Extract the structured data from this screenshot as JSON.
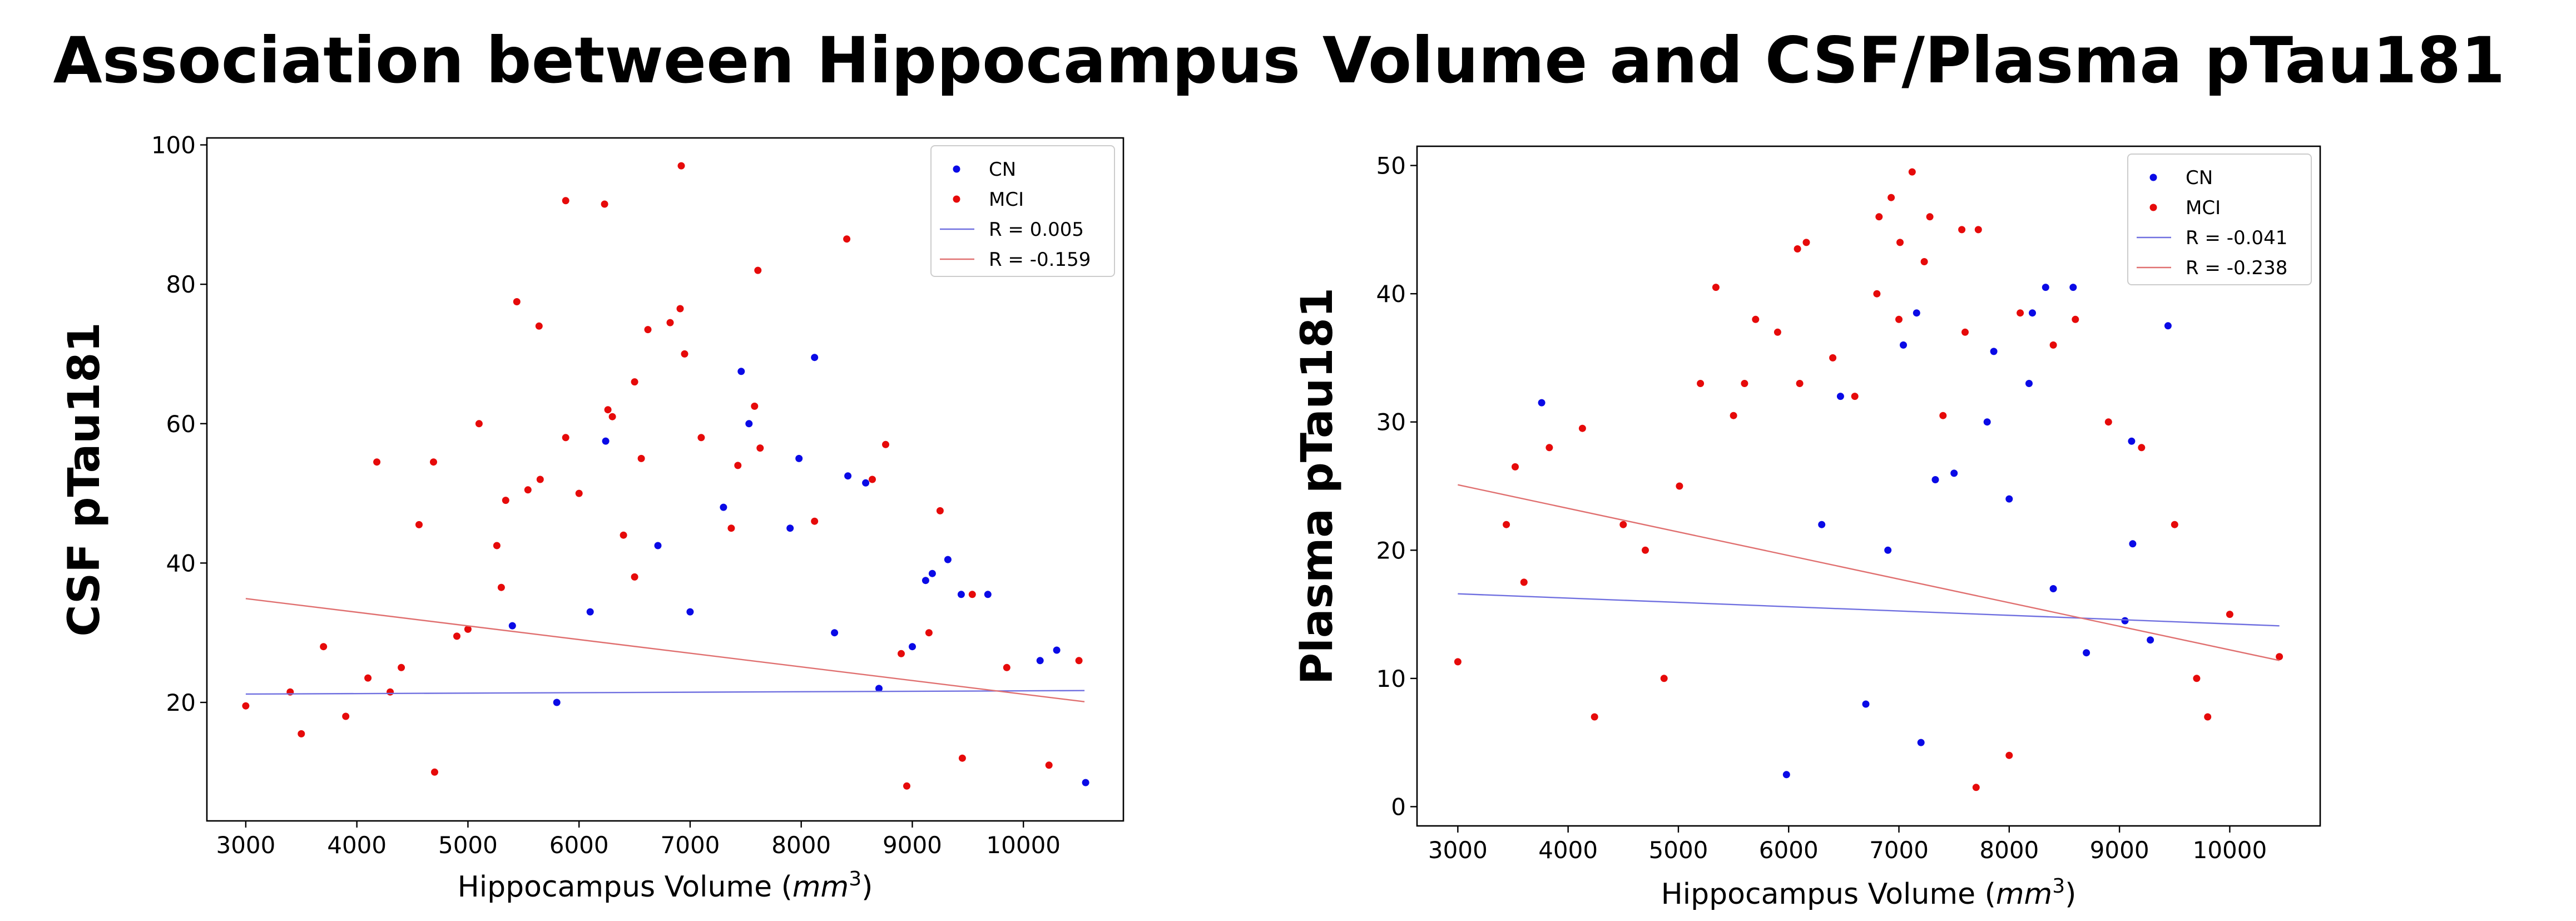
{
  "figure_title": "Association between Hippocampus Volume and CSF/Plasma pTau181",
  "colors": {
    "CN": "#0a0ae6",
    "MCI": "#e60a0a",
    "fit_CN": "#7070e0",
    "fit_MCI": "#e07070"
  },
  "chart_data": [
    {
      "type": "scatter",
      "xlabel": "Hippocampus Volume (mm3)",
      "ylabel": "CSF pTau181",
      "xlim": [
        2650,
        10900
      ],
      "ylim": [
        3,
        101
      ],
      "xticks": [
        3000,
        4000,
        5000,
        6000,
        7000,
        8000,
        9000,
        10000
      ],
      "yticks": [
        20,
        40,
        60,
        80,
        100
      ],
      "grid": false,
      "legend_position": "top-right",
      "legend": [
        {
          "label": "CN",
          "kind": "point",
          "series": "CN"
        },
        {
          "label": "MCI",
          "kind": "point",
          "series": "MCI"
        },
        {
          "label": "R = 0.005",
          "kind": "line",
          "series": "CN"
        },
        {
          "label": "R = -0.159",
          "kind": "line",
          "series": "MCI"
        }
      ],
      "fit_lines": [
        {
          "series": "CN",
          "r": 0.005,
          "x": [
            3000,
            10550
          ],
          "y": [
            21.2,
            21.7
          ]
        },
        {
          "series": "MCI",
          "r": -0.159,
          "x": [
            3000,
            10550
          ],
          "y": [
            34.9,
            20.1
          ]
        }
      ],
      "series": [
        {
          "name": "MCI",
          "x": [
            6920,
            5880,
            6230,
            8410,
            5440,
            7610,
            6820,
            6620,
            4180,
            6950,
            5640,
            6260,
            6500,
            5880,
            5100,
            4690,
            5340,
            4560,
            5650,
            6560,
            7580,
            8760,
            5260,
            8640,
            8120,
            9250,
            9540,
            7630,
            6300,
            7100,
            7430,
            7370,
            6000,
            6400,
            6500,
            5300,
            5000,
            4900,
            4300,
            4100,
            3700,
            3500,
            3000,
            3400,
            3900,
            4400,
            4700,
            9850,
            10230,
            10500,
            9450,
            9150,
            8900,
            8950,
            6910,
            5540
          ],
          "y": [
            97,
            92,
            91.5,
            86.5,
            77.5,
            82,
            74.5,
            73.5,
            54.5,
            70,
            74,
            62,
            66,
            58,
            60,
            54.5,
            49,
            45.5,
            52,
            55,
            62.5,
            57,
            42.5,
            52,
            46,
            47.5,
            35.5,
            56.5,
            61,
            58,
            54,
            45,
            50,
            44,
            38,
            36.5,
            30.5,
            29.5,
            21.5,
            23.5,
            28,
            15.5,
            19.5,
            21.5,
            18,
            25,
            10,
            25,
            11,
            26,
            12,
            30,
            27,
            8,
            76.5,
            50.5
          ]
        },
        {
          "name": "CN",
          "x": [
            7460,
            8120,
            7530,
            6240,
            7980,
            8420,
            8580,
            9180,
            9320,
            9120,
            9440,
            9680,
            10150,
            10300,
            10560,
            6710,
            7000,
            7300,
            7900,
            8300,
            8700,
            9000,
            6100,
            5800,
            5400
          ],
          "y": [
            67.5,
            69.5,
            60,
            57.5,
            55,
            52.5,
            51.5,
            38.5,
            40.5,
            37.5,
            35.5,
            35.5,
            26,
            27.5,
            8.5,
            42.5,
            33,
            48,
            45,
            30,
            22,
            28,
            33,
            20,
            31
          ]
        }
      ]
    },
    {
      "type": "scatter",
      "xlabel": "Hippocampus Volume (mm3)",
      "ylabel": "Plasma pTau181",
      "xlim": [
        2630,
        10820
      ],
      "ylim": [
        -1.5,
        51.5
      ],
      "xticks": [
        3000,
        4000,
        5000,
        6000,
        7000,
        8000,
        9000,
        10000
      ],
      "yticks": [
        0,
        10,
        20,
        30,
        40,
        50
      ],
      "grid": false,
      "legend_position": "top-right",
      "legend": [
        {
          "label": "CN",
          "kind": "point",
          "series": "CN"
        },
        {
          "label": "MCI",
          "kind": "point",
          "series": "MCI"
        },
        {
          "label": "R = -0.041",
          "kind": "line",
          "series": "CN"
        },
        {
          "label": "R = -0.238",
          "kind": "line",
          "series": "MCI"
        }
      ],
      "fit_lines": [
        {
          "series": "CN",
          "r": -0.041,
          "x": [
            3000,
            10450
          ],
          "y": [
            16.6,
            14.1
          ]
        },
        {
          "series": "MCI",
          "r": -0.238,
          "x": [
            3000,
            10450
          ],
          "y": [
            25.1,
            11.4
          ]
        }
      ],
      "series": [
        {
          "name": "MCI",
          "x": [
            7120,
            6930,
            7280,
            7720,
            6820,
            7010,
            6160,
            6080,
            7230,
            7570,
            5340,
            4130,
            3830,
            3520,
            3440,
            3600,
            4240,
            3000,
            4870,
            5010,
            5200,
            5500,
            5700,
            5900,
            6100,
            6400,
            6600,
            6800,
            7000,
            7400,
            7600,
            8100,
            8400,
            8600,
            8900,
            9200,
            9500,
            9700,
            9800,
            10000,
            10450,
            7700,
            8000,
            5600,
            4500,
            4700
          ],
          "y": [
            49.5,
            47.5,
            46,
            45,
            46,
            44,
            44,
            43.5,
            42.5,
            45,
            40.5,
            29.5,
            28,
            26.5,
            22,
            17.5,
            7,
            11.3,
            10,
            25,
            33,
            30.5,
            38,
            37,
            33,
            35,
            32,
            40,
            38,
            30.5,
            37,
            38.5,
            36,
            38,
            30,
            28,
            22,
            10,
            7,
            15,
            11.7,
            1.5,
            4,
            33,
            22,
            20
          ]
        },
        {
          "name": "CN",
          "x": [
            3760,
            8330,
            8580,
            8210,
            7160,
            7040,
            9440,
            9110,
            7860,
            8180,
            6470,
            7330,
            9120,
            9050,
            9280,
            5980,
            6700,
            7500,
            7800,
            8000,
            8400,
            8700,
            7200,
            6900,
            6300
          ],
          "y": [
            31.5,
            40.5,
            40.5,
            38.5,
            38.5,
            36,
            37.5,
            28.5,
            35.5,
            33,
            32,
            25.5,
            20.5,
            14.5,
            13,
            2.5,
            8,
            26,
            30,
            24,
            17,
            12,
            5,
            20,
            22
          ]
        }
      ]
    }
  ]
}
